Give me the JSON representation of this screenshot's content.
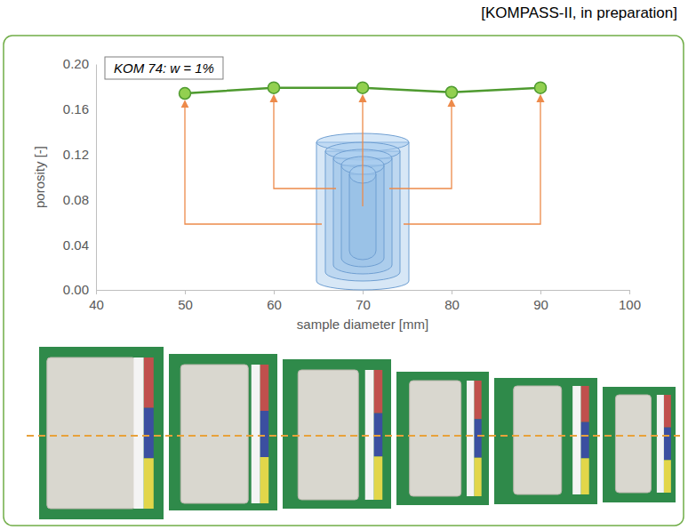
{
  "chart_data": {
    "type": "line",
    "title": "KOM 74: w = 1%",
    "annotations": [
      "[KOMPASS-II, in preparation]"
    ],
    "x_label": "sample diameter [mm]",
    "y_label": "porosity [-]",
    "x": [
      50,
      60,
      70,
      80,
      90
    ],
    "values": [
      0.174,
      0.179,
      0.179,
      0.175,
      0.179
    ],
    "color": "#4e9a2f",
    "marker": "circle",
    "line_style": "solid",
    "xlim": [
      40,
      100
    ],
    "xticks": [
      40,
      50,
      60,
      70,
      80,
      90,
      100
    ],
    "ylim": [
      0,
      0.2
    ],
    "yticks": [
      {
        "value": 0,
        "label": "0.00"
      },
      {
        "value": 0.04,
        "label": "0.04"
      },
      {
        "value": 0.08,
        "label": "0.08"
      },
      {
        "value": 0.12,
        "label": "0.12"
      },
      {
        "value": 0.16,
        "label": "0.16"
      },
      {
        "value": 0.2,
        "label": "0.20"
      }
    ],
    "grid": false
  }
}
